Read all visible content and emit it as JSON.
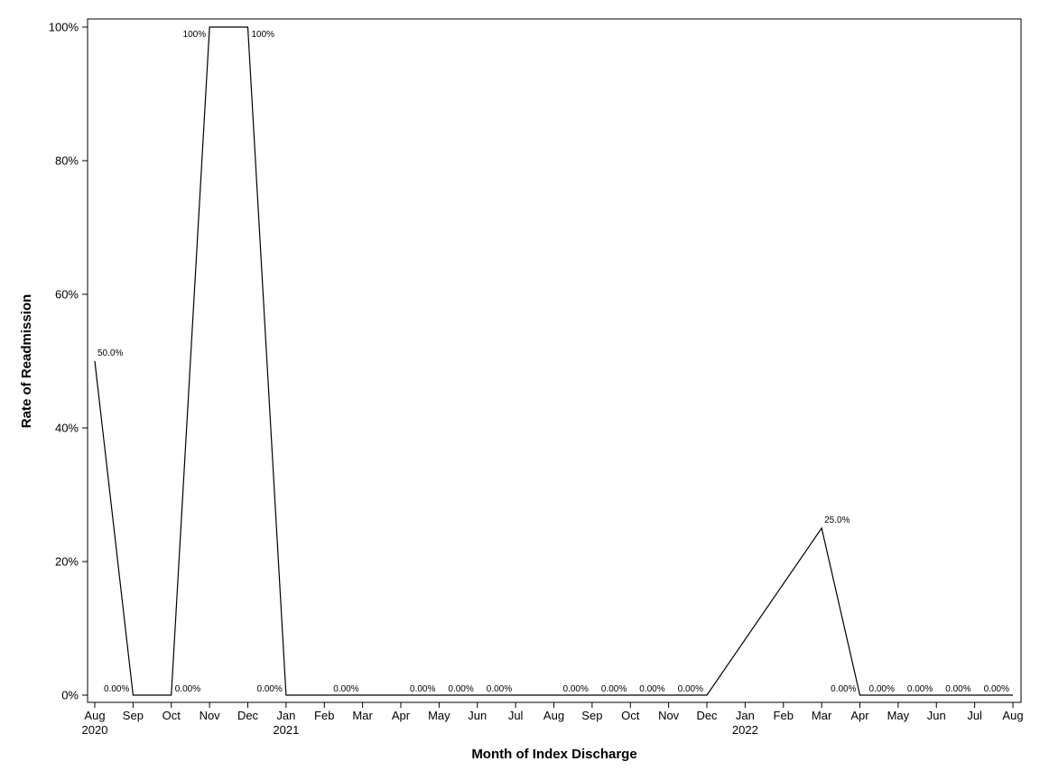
{
  "chart_data": {
    "type": "line",
    "title": "",
    "xlabel": "Month of Index Discharge",
    "ylabel": "Rate of Readmission",
    "ylim": [
      0,
      100
    ],
    "y_unit": "percent",
    "y_ticks": [
      "0%",
      "20%",
      "40%",
      "60%",
      "80%",
      "100%"
    ],
    "x_tick_labels": [
      {
        "month": "Aug",
        "year": "2020"
      },
      {
        "month": "Sep",
        "year": ""
      },
      {
        "month": "Oct",
        "year": ""
      },
      {
        "month": "Nov",
        "year": ""
      },
      {
        "month": "Dec",
        "year": ""
      },
      {
        "month": "Jan",
        "year": "2021"
      },
      {
        "month": "Feb",
        "year": ""
      },
      {
        "month": "Mar",
        "year": ""
      },
      {
        "month": "Apr",
        "year": ""
      },
      {
        "month": "May",
        "year": ""
      },
      {
        "month": "Jun",
        "year": ""
      },
      {
        "month": "Jul",
        "year": ""
      },
      {
        "month": "Aug",
        "year": ""
      },
      {
        "month": "Sep",
        "year": ""
      },
      {
        "month": "Oct",
        "year": ""
      },
      {
        "month": "Nov",
        "year": ""
      },
      {
        "month": "Dec",
        "year": ""
      },
      {
        "month": "Jan",
        "year": "2022"
      },
      {
        "month": "Feb",
        "year": ""
      },
      {
        "month": "Mar",
        "year": ""
      },
      {
        "month": "Apr",
        "year": ""
      },
      {
        "month": "May",
        "year": ""
      },
      {
        "month": "Jun",
        "year": ""
      },
      {
        "month": "Jul",
        "year": ""
      },
      {
        "month": "Aug",
        "year": ""
      }
    ],
    "points": [
      {
        "x": "2020-08",
        "y": 50,
        "label": "50.0%",
        "pos": "right"
      },
      {
        "x": "2020-09",
        "y": 0,
        "label": "0.00%",
        "pos": "left"
      },
      {
        "x": "2020-10",
        "y": 0,
        "label": "0.00%",
        "pos": "right"
      },
      {
        "x": "2020-11",
        "y": 100,
        "label": "100%",
        "pos": "left"
      },
      {
        "x": "2020-12",
        "y": 100,
        "label": "100%",
        "pos": "right"
      },
      {
        "x": "2021-01",
        "y": 0,
        "label": "0.00%",
        "pos": "left"
      },
      {
        "x": "2021-03",
        "y": 0,
        "label": "0.00%",
        "pos": "left"
      },
      {
        "x": "2021-05",
        "y": 0,
        "label": "0.00%",
        "pos": "left"
      },
      {
        "x": "2021-06",
        "y": 0,
        "label": "0.00%",
        "pos": "left"
      },
      {
        "x": "2021-07",
        "y": 0,
        "label": "0.00%",
        "pos": "left"
      },
      {
        "x": "2021-09",
        "y": 0,
        "label": "0.00%",
        "pos": "left"
      },
      {
        "x": "2021-10",
        "y": 0,
        "label": "0.00%",
        "pos": "left"
      },
      {
        "x": "2021-11",
        "y": 0,
        "label": "0.00%",
        "pos": "left"
      },
      {
        "x": "2021-12",
        "y": 0,
        "label": "0.00%",
        "pos": "left"
      },
      {
        "x": "2022-03",
        "y": 25,
        "label": "25.0%",
        "pos": "right"
      },
      {
        "x": "2022-04",
        "y": 0,
        "label": "0.00%",
        "pos": "left"
      },
      {
        "x": "2022-05",
        "y": 0,
        "label": "0.00%",
        "pos": "left"
      },
      {
        "x": "2022-06",
        "y": 0,
        "label": "0.00%",
        "pos": "left"
      },
      {
        "x": "2022-07",
        "y": 0,
        "label": "0.00%",
        "pos": "left"
      },
      {
        "x": "2022-08",
        "y": 0,
        "label": "0.00%",
        "pos": "left"
      }
    ],
    "grid": false,
    "line_color": "#000000"
  }
}
